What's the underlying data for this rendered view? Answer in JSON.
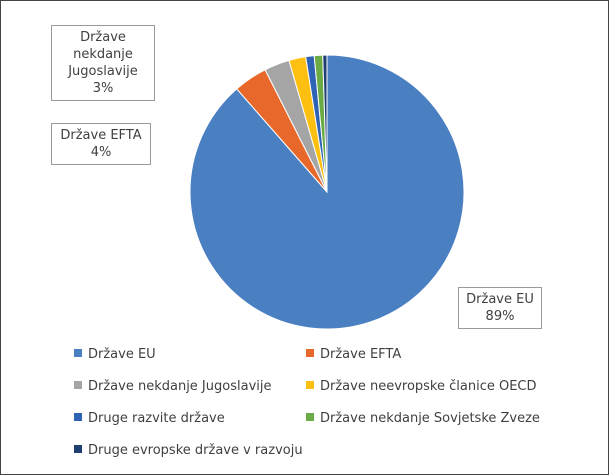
{
  "chart_data": {
    "type": "pie",
    "categories": [
      "Države EU",
      "Države EFTA",
      "Države nekdanje Jugoslavije",
      "Države neevropske članice OECD",
      "Druge razvite države",
      "Države nekdanje Sovjetske Zveze",
      "Druge evropske države v razvoju"
    ],
    "values": [
      89,
      4,
      3,
      2,
      1,
      1,
      0.5
    ],
    "value_labels": [
      "89%",
      "4%",
      "3%",
      null,
      null,
      null,
      null
    ],
    "colors": [
      "#4a7fc1",
      "#e8672a",
      "#a5a5a5",
      "#fdc010",
      "#2e62b4",
      "#6aab46",
      "#1f3f73"
    ]
  }
}
